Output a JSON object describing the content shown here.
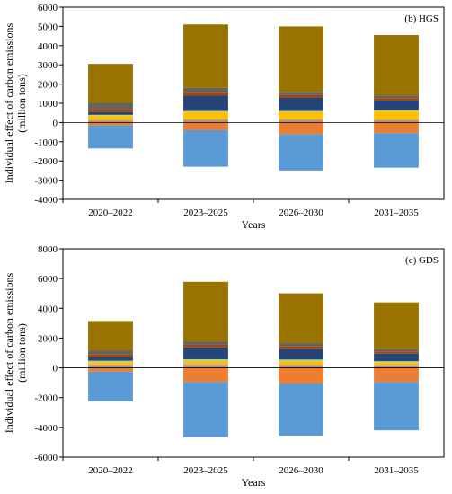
{
  "chart_data": [
    {
      "type": "bar",
      "stacked": true,
      "panel_label": "(b) HGS",
      "categories": [
        "2020–2022",
        "2023–2025",
        "2026–2030",
        "2031–2035"
      ],
      "xlabel": "Years",
      "ylabel": "Individual effect of carbon emissions (million tons)",
      "ylim": [
        -4000,
        6000
      ],
      "yticks": [
        -4000,
        -3000,
        -2000,
        -1000,
        0,
        1000,
        2000,
        3000,
        4000,
        5000,
        6000
      ],
      "grid": false,
      "positive_segments": [
        [
          {
            "color": "#5b9bd5",
            "value": 50
          },
          {
            "color": "#ed7d31",
            "value": 40
          },
          {
            "color": "#a5a5a5",
            "value": 40
          },
          {
            "color": "#ffc000",
            "value": 230
          },
          {
            "color": "#a9d18e",
            "value": 40
          },
          {
            "color": "#264478",
            "value": 150
          },
          {
            "color": "#9e480e",
            "value": 150
          },
          {
            "color": "#636363",
            "value": 300
          },
          {
            "color": "#997300",
            "value": 2050
          }
        ],
        [
          {
            "color": "#5b9bd5",
            "value": 60
          },
          {
            "color": "#ed7d31",
            "value": 50
          },
          {
            "color": "#a5a5a5",
            "value": 50
          },
          {
            "color": "#ffc000",
            "value": 400
          },
          {
            "color": "#a9d18e",
            "value": 40
          },
          {
            "color": "#264478",
            "value": 800
          },
          {
            "color": "#9e480e",
            "value": 200
          },
          {
            "color": "#636363",
            "value": 200
          },
          {
            "color": "#997300",
            "value": 3300
          }
        ],
        [
          {
            "color": "#5b9bd5",
            "value": 60
          },
          {
            "color": "#ed7d31",
            "value": 50
          },
          {
            "color": "#a5a5a5",
            "value": 50
          },
          {
            "color": "#ffc000",
            "value": 400
          },
          {
            "color": "#a9d18e",
            "value": 40
          },
          {
            "color": "#264478",
            "value": 700
          },
          {
            "color": "#9e480e",
            "value": 150
          },
          {
            "color": "#636363",
            "value": 150
          },
          {
            "color": "#997300",
            "value": 3400
          }
        ],
        [
          {
            "color": "#5b9bd5",
            "value": 60
          },
          {
            "color": "#ed7d31",
            "value": 50
          },
          {
            "color": "#a5a5a5",
            "value": 40
          },
          {
            "color": "#ffc000",
            "value": 450
          },
          {
            "color": "#a9d18e",
            "value": 40
          },
          {
            "color": "#264478",
            "value": 500
          },
          {
            "color": "#9e480e",
            "value": 130
          },
          {
            "color": "#636363",
            "value": 130
          },
          {
            "color": "#997300",
            "value": 3150
          }
        ]
      ],
      "negative_segments": [
        [
          {
            "color": "#ed7d31",
            "value": -150
          },
          {
            "color": "#5b9bd5",
            "value": -1200
          }
        ],
        [
          {
            "color": "#ed7d31",
            "value": -400
          },
          {
            "color": "#5b9bd5",
            "value": -1900
          }
        ],
        [
          {
            "color": "#ed7d31",
            "value": -600
          },
          {
            "color": "#5b9bd5",
            "value": -1900
          }
        ],
        [
          {
            "color": "#ed7d31",
            "value": -550
          },
          {
            "color": "#5b9bd5",
            "value": -1800
          }
        ]
      ]
    },
    {
      "type": "bar",
      "stacked": true,
      "panel_label": "(c) GDS",
      "categories": [
        "2020–2022",
        "2023–2025",
        "2026–2030",
        "2031–2035"
      ],
      "xlabel": "Years",
      "ylabel": "Individual effect of carbon emissions (million tons)",
      "ylim": [
        -6000,
        8000
      ],
      "yticks": [
        -6000,
        -4000,
        -2000,
        0,
        2000,
        4000,
        6000,
        8000
      ],
      "grid": false,
      "positive_segments": [
        [
          {
            "color": "#5b9bd5",
            "value": 80
          },
          {
            "color": "#ed7d31",
            "value": 80
          },
          {
            "color": "#a5a5a5",
            "value": 60
          },
          {
            "color": "#ffc000",
            "value": 160
          },
          {
            "color": "#a9d18e",
            "value": 100
          },
          {
            "color": "#264478",
            "value": 220
          },
          {
            "color": "#9e480e",
            "value": 200
          },
          {
            "color": "#636363",
            "value": 250
          },
          {
            "color": "#997300",
            "value": 2000
          }
        ],
        [
          {
            "color": "#5b9bd5",
            "value": 60
          },
          {
            "color": "#ed7d31",
            "value": 100
          },
          {
            "color": "#a5a5a5",
            "value": 100
          },
          {
            "color": "#ffc000",
            "value": 200
          },
          {
            "color": "#a9d18e",
            "value": 120
          },
          {
            "color": "#264478",
            "value": 800
          },
          {
            "color": "#9e480e",
            "value": 200
          },
          {
            "color": "#636363",
            "value": 200
          },
          {
            "color": "#997300",
            "value": 4000
          }
        ],
        [
          {
            "color": "#5b9bd5",
            "value": 60
          },
          {
            "color": "#ed7d31",
            "value": 80
          },
          {
            "color": "#a5a5a5",
            "value": 80
          },
          {
            "color": "#ffc000",
            "value": 220
          },
          {
            "color": "#a9d18e",
            "value": 120
          },
          {
            "color": "#264478",
            "value": 700
          },
          {
            "color": "#9e480e",
            "value": 200
          },
          {
            "color": "#636363",
            "value": 200
          },
          {
            "color": "#997300",
            "value": 3350
          }
        ],
        [
          {
            "color": "#5b9bd5",
            "value": 60
          },
          {
            "color": "#ed7d31",
            "value": 80
          },
          {
            "color": "#a5a5a5",
            "value": 60
          },
          {
            "color": "#ffc000",
            "value": 150
          },
          {
            "color": "#a9d18e",
            "value": 100
          },
          {
            "color": "#264478",
            "value": 500
          },
          {
            "color": "#9e480e",
            "value": 150
          },
          {
            "color": "#636363",
            "value": 150
          },
          {
            "color": "#997300",
            "value": 3150
          }
        ]
      ],
      "negative_segments": [
        [
          {
            "color": "#ed7d31",
            "value": -250
          },
          {
            "color": "#5b9bd5",
            "value": -2000
          }
        ],
        [
          {
            "color": "#ed7d31",
            "value": -950
          },
          {
            "color": "#5b9bd5",
            "value": -3700
          }
        ],
        [
          {
            "color": "#ed7d31",
            "value": -1050
          },
          {
            "color": "#5b9bd5",
            "value": -3500
          }
        ],
        [
          {
            "color": "#ed7d31",
            "value": -950
          },
          {
            "color": "#5b9bd5",
            "value": -3250
          }
        ]
      ]
    }
  ]
}
